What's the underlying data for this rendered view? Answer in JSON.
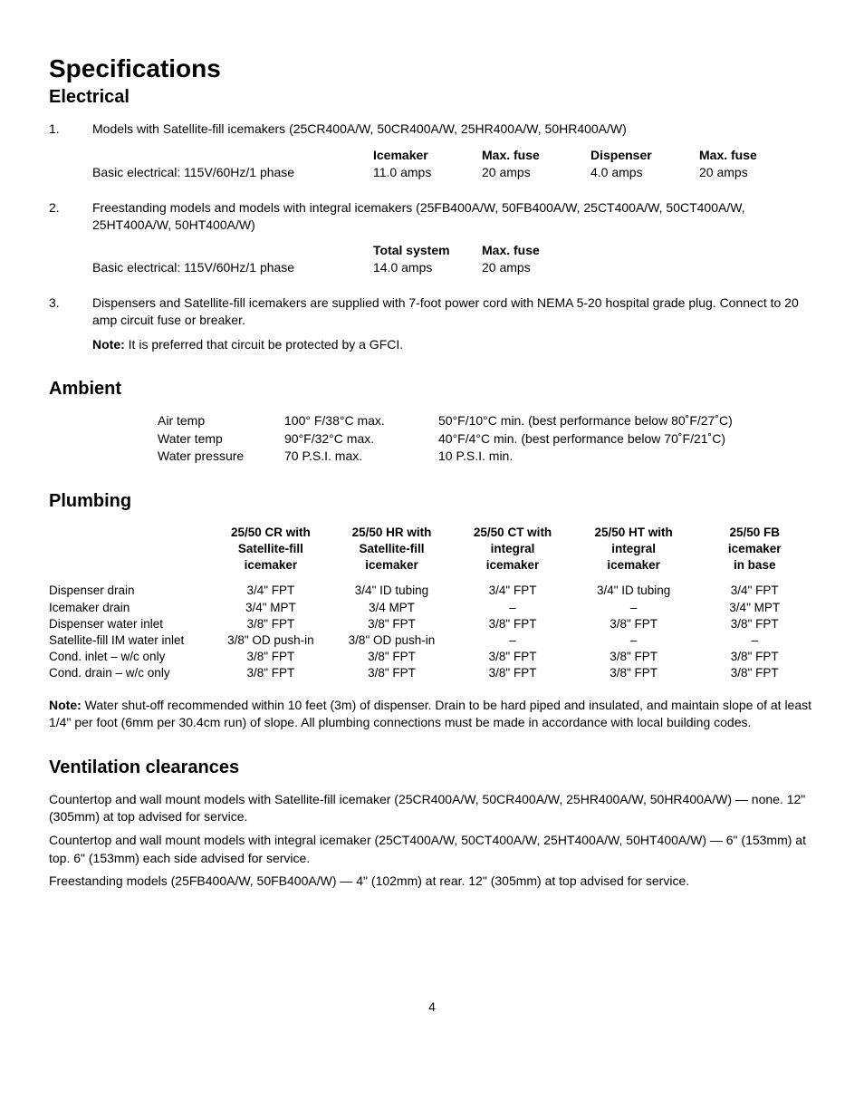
{
  "title": "Specifications",
  "sections": {
    "electrical": {
      "heading": "Electrical",
      "item1": {
        "num": "1.",
        "text": "Models with Satellite-fill icemakers (25CR400A/W, 50CR400A/W, 25HR400A/W, 50HR400A/W)",
        "headers": {
          "c1": "Icemaker",
          "c2": "Max. fuse",
          "c3": "Dispenser",
          "c4": "Max. fuse"
        },
        "row": {
          "c0": "Basic electrical: 115V/60Hz/1 phase",
          "c1": "11.0 amps",
          "c2": "20 amps",
          "c3": "4.0 amps",
          "c4": "20 amps"
        }
      },
      "item2": {
        "num": "2.",
        "text": "Freestanding models and models with integral icemakers (25FB400A/W, 50FB400A/W, 25CT400A/W, 50CT400A/W, 25HT400A/W, 50HT400A/W)",
        "headers": {
          "c1": "Total system",
          "c2": "Max. fuse"
        },
        "row": {
          "c0": "Basic electrical: 115V/60Hz/1 phase",
          "c1": "14.0 amps",
          "c2": "20 amps"
        }
      },
      "item3": {
        "num": "3.",
        "text": "Dispensers and Satellite-fill icemakers are supplied with 7-foot power cord with NEMA 5-20 hospital grade plug. Connect to 20 amp circuit fuse or breaker.",
        "note_label": "Note:",
        "note_text": " It is preferred that circuit be protected by a GFCI."
      }
    },
    "ambient": {
      "heading": "Ambient",
      "rows": [
        {
          "c0": "Air temp",
          "c1": "100° F/38°C max.",
          "c2": "50°F/10°C min. (best performance below 80˚F/27˚C)"
        },
        {
          "c0": "Water temp",
          "c1": "90°F/32°C max.",
          "c2": "40°F/4°C min. (best performance below 70˚F/21˚C)"
        },
        {
          "c0": "Water pressure",
          "c1": "70 P.S.I. max.",
          "c2": "10 P.S.I. min."
        }
      ]
    },
    "plumbing": {
      "heading": "Plumbing",
      "headers": {
        "c1a": "25/50 CR with",
        "c1b": "Satellite-fill",
        "c1c": "icemaker",
        "c2a": "25/50 HR with",
        "c2b": "Satellite-fill",
        "c2c": "icemaker",
        "c3a": "25/50 CT with",
        "c3b": "integral",
        "c3c": "icemaker",
        "c4a": "25/50 HT with",
        "c4b": "integral",
        "c4c": "icemaker",
        "c5a": "25/50 FB",
        "c5b": "icemaker",
        "c5c": "in base"
      },
      "rows": [
        {
          "c0": "Dispenser drain",
          "c1": "3/4\" FPT",
          "c2": "3/4\" ID tubing",
          "c3": "3/4\" FPT",
          "c4": "3/4\" ID tubing",
          "c5": "3/4\" FPT"
        },
        {
          "c0": "Icemaker drain",
          "c1": "3/4\" MPT",
          "c2": "3/4 MPT",
          "c3": "–",
          "c4": "–",
          "c5": "3/4\" MPT"
        },
        {
          "c0": "Dispenser water inlet",
          "c1": "3/8\" FPT",
          "c2": "3/8\" FPT",
          "c3": "3/8\" FPT",
          "c4": "3/8\" FPT",
          "c5": "3/8\" FPT"
        },
        {
          "c0": "Satellite-fill IM water inlet",
          "c1": "3/8\" OD push-in",
          "c2": "3/8\" OD push-in",
          "c3": "–",
          "c4": "–",
          "c5": "–"
        },
        {
          "c0": "Cond. inlet  – w/c only",
          "c1": "3/8\" FPT",
          "c2": "3/8\" FPT",
          "c3": "3/8\" FPT",
          "c4": "3/8\" FPT",
          "c5": "3/8\" FPT"
        },
        {
          "c0": "Cond. drain  – w/c only",
          "c1": "3/8\" FPT",
          "c2": "3/8\" FPT",
          "c3": "3/8\" FPT",
          "c4": "3/8\" FPT",
          "c5": "3/8\" FPT"
        }
      ],
      "note_label": "Note:",
      "note_text": " Water shut-off recommended within 10 feet (3m) of dispenser. Drain to be hard piped and insulated, and maintain slope of at least 1/4\" per foot (6mm per 30.4cm run) of slope. All plumbing connections must be made in accordance with local building codes."
    },
    "ventilation": {
      "heading": "Ventilation clearances",
      "p1": "Countertop and wall mount models with Satellite-fill icemaker (25CR400A/W, 50CR400A/W, 25HR400A/W, 50HR400A/W) — none. 12\" (305mm) at top advised for service.",
      "p2": "Countertop and wall mount models with integral icemaker (25CT400A/W, 50CT400A/W, 25HT400A/W, 50HT400A/W) — 6\" (153mm) at top. 6\" (153mm) each side advised for service.",
      "p3": "Freestanding models (25FB400A/W, 50FB400A/W) — 4\" (102mm) at rear. 12\" (305mm) at top advised for service."
    }
  },
  "page_number": "4"
}
